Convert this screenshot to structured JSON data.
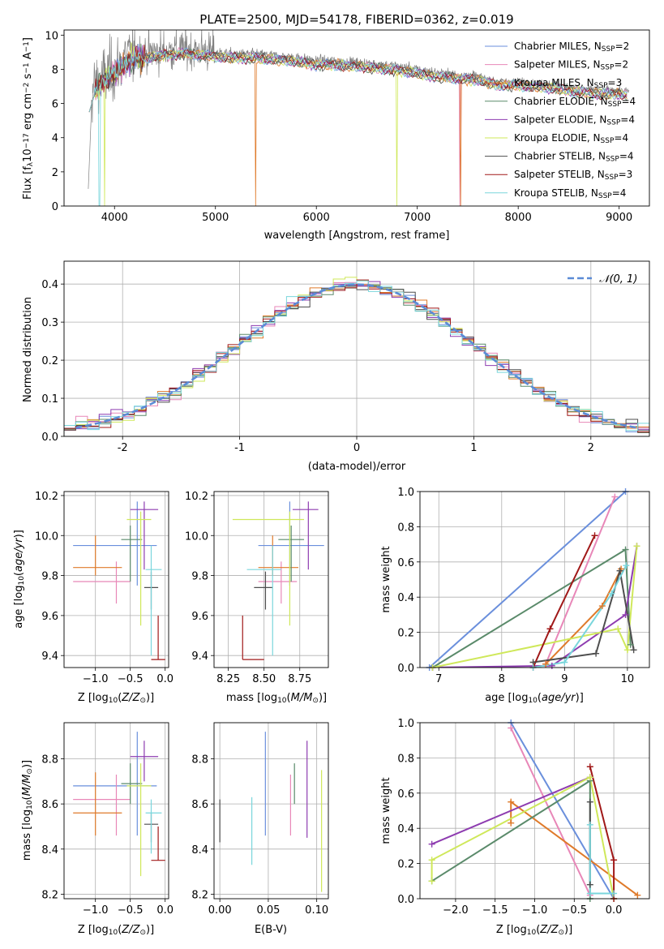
{
  "page_title": "PLATE=2500, MJD=54178, FIBERID=0362, z=0.019",
  "colors": {
    "Chabrier MILES": "#6a8fdc",
    "Salpeter MILES": "#e887b8",
    "Kroupa MILES": "#df7a2a",
    "Chabrier ELODIE": "#5a8a6a",
    "Salpeter ELODIE": "#8e3cb0",
    "Kroupa ELODIE": "#cfe85a",
    "Chabrier STELIB": "#4e4e4e",
    "Salpeter STELIB": "#a01818",
    "Kroupa STELIB": "#7ad6dc",
    "data": "#808080",
    "normal": "#5b8bd6"
  },
  "legend_spectrum": [
    {
      "model": "Chabrier MILES",
      "label": "Chabrier MILES, N",
      "sub": "SSP",
      "tail": "=2"
    },
    {
      "model": "Salpeter MILES",
      "label": "Salpeter MILES, N",
      "sub": "SSP",
      "tail": "=2"
    },
    {
      "model": "Kroupa MILES",
      "label": "Kroupa MILES, N",
      "sub": "SSP",
      "tail": "=3"
    },
    {
      "model": "Chabrier ELODIE",
      "label": "Chabrier ELODIE, N",
      "sub": "SSP",
      "tail": "=4"
    },
    {
      "model": "Salpeter ELODIE",
      "label": "Salpeter ELODIE, N",
      "sub": "SSP",
      "tail": "=4"
    },
    {
      "model": "Kroupa ELODIE",
      "label": "Kroupa ELODIE, N",
      "sub": "SSP",
      "tail": "=4"
    },
    {
      "model": "Chabrier STELIB",
      "label": "Chabrier STELIB, N",
      "sub": "SSP",
      "tail": "=4"
    },
    {
      "model": "Salpeter STELIB",
      "label": "Salpeter STELIB, N",
      "sub": "SSP",
      "tail": "=3"
    },
    {
      "model": "Kroupa STELIB",
      "label": "Kroupa STELIB, N",
      "sub": "SSP",
      "tail": "=4"
    }
  ],
  "chart_data": [
    {
      "id": "spectrum",
      "type": "line",
      "title": "PLATE=2500, MJD=54178, FIBERID=0362, z=0.019",
      "xlabel": "wavelength [Angstrom, rest frame]",
      "ylabel": "Flux [f_λ10^-17 erg cm^-2 s^-1 A^-1]",
      "xlim": [
        3500,
        9300
      ],
      "ylim": [
        0,
        10.3
      ],
      "xticks": [
        4000,
        5000,
        6000,
        7000,
        8000,
        9000
      ],
      "yticks": [
        0,
        2,
        4,
        6,
        8,
        10
      ],
      "grid": false,
      "legend": "top-right",
      "continuum": {
        "x": [
          3740,
          3760,
          3800,
          3850,
          3900,
          3950,
          4000,
          4100,
          4200,
          4300,
          4400,
          4500,
          4600,
          4700,
          4800,
          5000,
          5200,
          5400,
          5600,
          5800,
          6000,
          6200,
          6400,
          6600,
          6800,
          7000,
          7200,
          7400,
          7600,
          7800,
          8000,
          8200,
          8400,
          8600,
          8800,
          9000,
          9100
        ],
        "y": [
          6.0,
          6.4,
          7.0,
          7.3,
          7.6,
          7.8,
          8.0,
          8.6,
          8.9,
          8.9,
          9.0,
          9.1,
          9.1,
          9.2,
          9.1,
          9.0,
          8.9,
          8.9,
          8.8,
          8.7,
          8.5,
          8.5,
          8.4,
          8.3,
          8.2,
          8.0,
          7.8,
          7.7,
          7.6,
          7.3,
          7.3,
          7.2,
          7.1,
          6.9,
          6.8,
          6.8,
          6.7
        ]
      },
      "data_series": "observed flux (grey)",
      "model_series": [
        "Chabrier MILES",
        "Salpeter MILES",
        "Kroupa MILES",
        "Chabrier ELODIE",
        "Salpeter ELODIE",
        "Kroupa ELODIE",
        "Chabrier STELIB",
        "Salpeter STELIB",
        "Kroupa STELIB"
      ]
    },
    {
      "id": "residuals",
      "type": "step",
      "xlabel": "(data-model)/error",
      "ylabel": "Normed distribution",
      "xlim": [
        -2.5,
        2.5
      ],
      "ylim": [
        0,
        0.46
      ],
      "xticks": [
        -2,
        -1,
        0,
        1,
        2
      ],
      "yticks": [
        0.0,
        0.1,
        0.2,
        0.3,
        0.4
      ],
      "grid": true,
      "legend": "top-right",
      "legend_label": "𝒩(0, 1)",
      "bin_width": 0.1,
      "series": [
        "Chabrier MILES",
        "Salpeter MILES",
        "Kroupa MILES",
        "Chabrier ELODIE",
        "Salpeter ELODIE",
        "Kroupa ELODIE",
        "Chabrier STELIB",
        "Salpeter STELIB",
        "Kroupa STELIB"
      ]
    },
    {
      "id": "age_vs_Z",
      "type": "scatter",
      "xlabel": "Z [log10(Z/Z⊙)]",
      "ylabel": "age  [log10(age/yr)]",
      "xlim": [
        -1.45,
        0.05
      ],
      "ylim": [
        9.34,
        10.22
      ],
      "xticks": [
        -1.0,
        -0.5,
        0.0
      ],
      "xticklabels": [
        "−1.0",
        "−0.5",
        "0.0"
      ],
      "yticks": [
        9.4,
        9.6,
        9.8,
        10.0,
        10.2
      ],
      "grid": true,
      "points": [
        {
          "model": "Chabrier MILES",
          "x": -0.4,
          "xlo": -1.32,
          "xhi": -0.12,
          "y": 9.95,
          "ylo": 9.75,
          "yhi": 10.17
        },
        {
          "model": "Salpeter MILES",
          "x": -0.7,
          "xlo": -1.32,
          "xhi": -0.5,
          "y": 9.77,
          "ylo": 9.66,
          "yhi": 9.87
        },
        {
          "model": "Kroupa MILES",
          "x": -1.0,
          "xlo": -1.32,
          "xhi": -0.62,
          "y": 9.84,
          "ylo": 9.8,
          "yhi": 10.0
        },
        {
          "model": "Chabrier ELODIE",
          "x": -0.5,
          "xlo": -0.63,
          "xhi": -0.33,
          "y": 9.98,
          "ylo": 9.77,
          "yhi": 10.05
        },
        {
          "model": "Salpeter ELODIE",
          "x": -0.3,
          "xlo": -0.5,
          "xhi": -0.1,
          "y": 10.13,
          "ylo": 9.83,
          "yhi": 10.17
        },
        {
          "model": "Kroupa ELODIE",
          "x": -0.35,
          "xlo": -0.55,
          "xhi": -0.2,
          "y": 10.08,
          "ylo": 9.55,
          "yhi": 10.12
        },
        {
          "model": "Chabrier STELIB",
          "x": -0.2,
          "xlo": -0.3,
          "xhi": -0.1,
          "y": 9.74,
          "ylo": 9.63,
          "yhi": 9.82
        },
        {
          "model": "Salpeter STELIB",
          "x": -0.1,
          "xlo": -0.2,
          "xhi": 0.0,
          "y": 9.38,
          "ylo": 9.38,
          "yhi": 9.6
        },
        {
          "model": "Kroupa STELIB",
          "x": -0.2,
          "xlo": -0.28,
          "xhi": -0.05,
          "y": 9.83,
          "ylo": 9.4,
          "yhi": 9.95
        }
      ]
    },
    {
      "id": "age_vs_mass",
      "type": "scatter",
      "xlabel": "mass [log10(M/M⊙)]",
      "ylabel": "",
      "xlim": [
        8.15,
        8.95
      ],
      "ylim": [
        9.34,
        10.22
      ],
      "xticks": [
        8.25,
        8.5,
        8.75
      ],
      "xticklabels": [
        "8.25",
        "8.50",
        "8.75"
      ],
      "yticks": [
        9.4,
        9.6,
        9.8,
        10.0,
        10.2
      ],
      "grid": true,
      "points": [
        {
          "model": "Chabrier MILES",
          "x": 8.68,
          "xlo": 8.46,
          "xhi": 8.92,
          "y": 9.95,
          "ylo": 9.75,
          "yhi": 10.17
        },
        {
          "model": "Salpeter MILES",
          "x": 8.62,
          "xlo": 8.46,
          "xhi": 8.73,
          "y": 9.77,
          "ylo": 9.66,
          "yhi": 9.87
        },
        {
          "model": "Kroupa MILES",
          "x": 8.56,
          "xlo": 8.46,
          "xhi": 8.74,
          "y": 9.84,
          "ylo": 9.8,
          "yhi": 10.0
        },
        {
          "model": "Chabrier ELODIE",
          "x": 8.69,
          "xlo": 8.6,
          "xhi": 8.78,
          "y": 9.98,
          "ylo": 9.77,
          "yhi": 10.05
        },
        {
          "model": "Salpeter ELODIE",
          "x": 8.81,
          "xlo": 8.7,
          "xhi": 8.88,
          "y": 10.13,
          "ylo": 9.83,
          "yhi": 10.17
        },
        {
          "model": "Kroupa ELODIE",
          "x": 8.68,
          "xlo": 8.28,
          "xhi": 8.78,
          "y": 10.08,
          "ylo": 9.55,
          "yhi": 10.12
        },
        {
          "model": "Chabrier STELIB",
          "x": 8.51,
          "xlo": 8.43,
          "xhi": 8.56,
          "y": 9.74,
          "ylo": 9.63,
          "yhi": 9.82
        },
        {
          "model": "Salpeter STELIB",
          "x": 8.35,
          "xlo": 8.35,
          "xhi": 8.5,
          "y": 9.38,
          "ylo": 9.38,
          "yhi": 9.6
        },
        {
          "model": "Kroupa STELIB",
          "x": 8.56,
          "xlo": 8.38,
          "xhi": 8.62,
          "y": 9.83,
          "ylo": 9.4,
          "yhi": 9.95
        }
      ]
    },
    {
      "id": "mass_vs_Z",
      "type": "scatter",
      "xlabel": "Z [log10(Z/Z⊙)]",
      "ylabel": "mass [log10(M/M⊙)]",
      "xlim": [
        -1.45,
        0.05
      ],
      "ylim": [
        8.18,
        8.96
      ],
      "xticks": [
        -1.0,
        -0.5,
        0.0
      ],
      "xticklabels": [
        "−1.0",
        "−0.5",
        "0.0"
      ],
      "yticks": [
        8.2,
        8.4,
        8.6,
        8.8
      ],
      "grid": true,
      "points": [
        {
          "model": "Chabrier MILES",
          "x": -0.4,
          "xlo": -1.32,
          "xhi": -0.12,
          "y": 8.68,
          "ylo": 8.46,
          "yhi": 8.92
        },
        {
          "model": "Salpeter MILES",
          "x": -0.7,
          "xlo": -1.32,
          "xhi": -0.5,
          "y": 8.62,
          "ylo": 8.46,
          "yhi": 8.73
        },
        {
          "model": "Kroupa MILES",
          "x": -1.0,
          "xlo": -1.32,
          "xhi": -0.62,
          "y": 8.56,
          "ylo": 8.46,
          "yhi": 8.74
        },
        {
          "model": "Chabrier ELODIE",
          "x": -0.5,
          "xlo": -0.63,
          "xhi": -0.33,
          "y": 8.69,
          "ylo": 8.6,
          "yhi": 8.78
        },
        {
          "model": "Salpeter ELODIE",
          "x": -0.3,
          "xlo": -0.5,
          "xhi": -0.1,
          "y": 8.81,
          "ylo": 8.7,
          "yhi": 8.88
        },
        {
          "model": "Kroupa ELODIE",
          "x": -0.35,
          "xlo": -0.55,
          "xhi": -0.2,
          "y": 8.68,
          "ylo": 8.28,
          "yhi": 8.78
        },
        {
          "model": "Chabrier STELIB",
          "x": -0.2,
          "xlo": -0.3,
          "xhi": -0.1,
          "y": 8.51,
          "ylo": 8.43,
          "yhi": 8.56
        },
        {
          "model": "Salpeter STELIB",
          "x": -0.1,
          "xlo": -0.2,
          "xhi": 0.0,
          "y": 8.35,
          "ylo": 8.35,
          "yhi": 8.5
        },
        {
          "model": "Kroupa STELIB",
          "x": -0.2,
          "xlo": -0.28,
          "xhi": -0.05,
          "y": 8.56,
          "ylo": 8.38,
          "yhi": 8.62
        }
      ]
    },
    {
      "id": "mass_vs_EBV",
      "type": "scatter",
      "xlabel": "E(B-V)",
      "ylabel": "",
      "xlim": [
        -0.006,
        0.112
      ],
      "ylim": [
        8.18,
        8.96
      ],
      "xticks": [
        0.0,
        0.05,
        0.1
      ],
      "xticklabels": [
        "0.00",
        "0.05",
        "0.10"
      ],
      "yticks": [
        8.2,
        8.4,
        8.6,
        8.8
      ],
      "grid": true,
      "points": [
        {
          "model": "Chabrier STELIB",
          "x": 0.0,
          "y": 8.51,
          "ylo": 8.43,
          "yhi": 8.62
        },
        {
          "model": "Kroupa STELIB",
          "x": 0.033,
          "y": 8.48,
          "ylo": 8.33,
          "yhi": 8.63
        },
        {
          "model": "Chabrier MILES",
          "x": 0.047,
          "y": 8.68,
          "ylo": 8.46,
          "yhi": 8.92
        },
        {
          "model": "Salpeter MILES",
          "x": 0.073,
          "y": 8.62,
          "ylo": 8.46,
          "yhi": 8.73
        },
        {
          "model": "Chabrier ELODIE",
          "x": 0.077,
          "y": 8.69,
          "ylo": 8.6,
          "yhi": 8.78
        },
        {
          "model": "Salpeter ELODIE",
          "x": 0.09,
          "y": 8.7,
          "ylo": 8.45,
          "yhi": 8.88
        },
        {
          "model": "Kroupa ELODIE",
          "x": 0.105,
          "y": 8.45,
          "ylo": 8.21,
          "yhi": 8.75
        }
      ]
    },
    {
      "id": "mw_vs_age",
      "type": "line",
      "xlabel": "age  [log10(age/yr)]",
      "ylabel": "mass weight",
      "xlim": [
        6.7,
        10.35
      ],
      "ylim": [
        0,
        1
      ],
      "xticks": [
        7,
        8,
        9,
        10
      ],
      "yticks": [
        0.0,
        0.2,
        0.4,
        0.6,
        0.8,
        1.0
      ],
      "grid": true,
      "series": [
        {
          "name": "Chabrier MILES",
          "x": [
            6.85,
            9.97
          ],
          "y": [
            0.0,
            1.0
          ]
        },
        {
          "name": "Salpeter MILES",
          "x": [
            8.7,
            9.8
          ],
          "y": [
            0.02,
            0.97
          ]
        },
        {
          "name": "Kroupa MILES",
          "x": [
            8.7,
            9.6,
            9.9
          ],
          "y": [
            0.02,
            0.35,
            0.56
          ]
        },
        {
          "name": "Chabrier ELODIE",
          "x": [
            6.9,
            9.97,
            10.05
          ],
          "y": [
            0.0,
            0.67,
            0.13
          ]
        },
        {
          "name": "Salpeter ELODIE",
          "x": [
            6.9,
            8.8,
            9.97,
            10.15
          ],
          "y": [
            0.0,
            0.01,
            0.3,
            0.69
          ]
        },
        {
          "name": "Kroupa ELODIE",
          "x": [
            6.9,
            9.85,
            10.0,
            10.15
          ],
          "y": [
            0.0,
            0.22,
            0.1,
            0.69
          ]
        },
        {
          "name": "Chabrier STELIB",
          "x": [
            8.5,
            9.5,
            9.88,
            10.1
          ],
          "y": [
            0.03,
            0.08,
            0.55,
            0.1
          ]
        },
        {
          "name": "Salpeter STELIB",
          "x": [
            8.5,
            8.77,
            9.48
          ],
          "y": [
            0.0,
            0.22,
            0.75
          ]
        },
        {
          "name": "Kroupa STELIB",
          "x": [
            8.5,
            9.0,
            9.75,
            9.98
          ],
          "y": [
            0.0,
            0.03,
            0.42,
            0.58
          ]
        }
      ]
    },
    {
      "id": "mw_vs_Z",
      "type": "line",
      "xlabel": "Z [log10(Z/Z⊙)]",
      "ylabel": "mass weight",
      "xlim": [
        -2.45,
        0.45
      ],
      "ylim": [
        0,
        1
      ],
      "xticks": [
        -2.0,
        -1.5,
        -1.0,
        -0.5,
        0.0
      ],
      "xticklabels": [
        "−2.0",
        "−1.5",
        "−1.0",
        "−0.5",
        "0.0"
      ],
      "yticks": [
        0.0,
        0.2,
        0.4,
        0.6,
        0.8,
        1.0
      ],
      "grid": true,
      "series": [
        {
          "name": "Chabrier MILES",
          "x": [
            -1.3,
            0.0
          ],
          "y": [
            1.0,
            0.0
          ]
        },
        {
          "name": "Salpeter MILES",
          "x": [
            -1.3,
            -0.3
          ],
          "y": [
            0.97,
            0.02
          ]
        },
        {
          "name": "Kroupa MILES",
          "x": [
            -1.3,
            -1.3,
            0.3
          ],
          "y": [
            0.43,
            0.55,
            0.02
          ]
        },
        {
          "name": "Chabrier ELODIE",
          "x": [
            -2.3,
            -0.3,
            -0.3
          ],
          "y": [
            0.1,
            0.67,
            0.0
          ]
        },
        {
          "name": "Salpeter ELODIE",
          "x": [
            -2.3,
            -0.3
          ],
          "y": [
            0.31,
            0.69
          ]
        },
        {
          "name": "Kroupa ELODIE",
          "x": [
            -2.3,
            -2.3,
            -0.3,
            0.0
          ],
          "y": [
            0.1,
            0.22,
            0.69,
            0.0
          ]
        },
        {
          "name": "Chabrier STELIB",
          "x": [
            -0.3,
            -0.3
          ],
          "y": [
            0.08,
            0.55
          ]
        },
        {
          "name": "Salpeter STELIB",
          "x": [
            -0.3,
            0.0,
            0.0
          ],
          "y": [
            0.75,
            0.22,
            0.0
          ]
        },
        {
          "name": "Kroupa STELIB",
          "x": [
            -0.3,
            -0.3,
            0.0
          ],
          "y": [
            0.42,
            0.03,
            0.03
          ]
        }
      ]
    }
  ]
}
